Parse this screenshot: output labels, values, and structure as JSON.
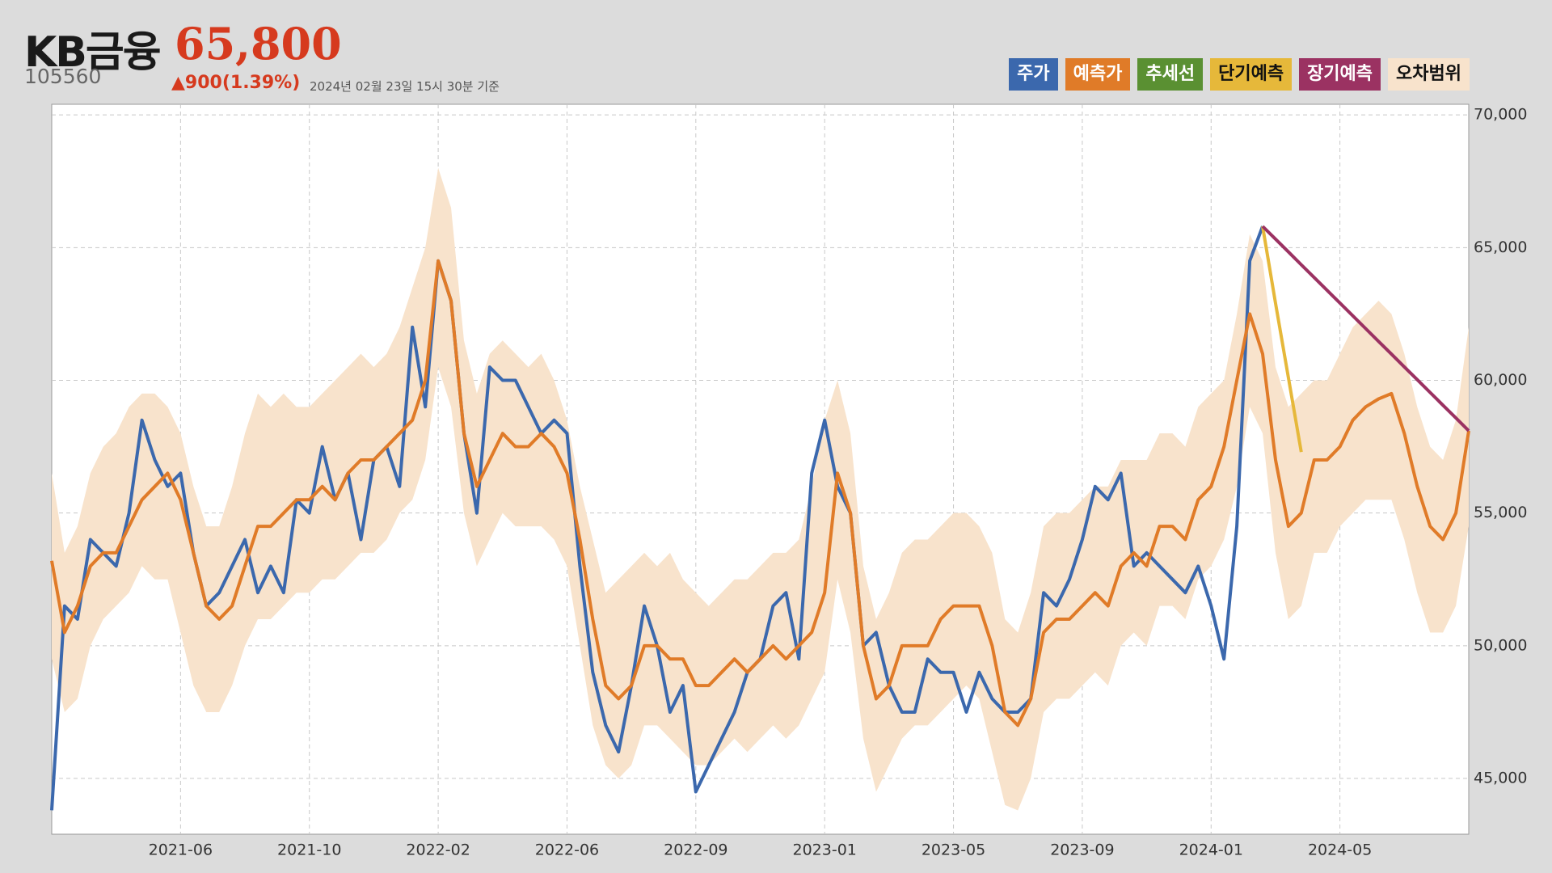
{
  "header": {
    "name": "KB금융",
    "price": "65,800",
    "code": "105560",
    "change": "▲900(1.39%)",
    "timestamp": "2024년 02월 23일 15시 30분 기준"
  },
  "chart_data": {
    "type": "line",
    "categories": [
      null,
      null,
      null,
      null,
      null,
      null,
      null,
      null,
      null,
      null,
      "2021-06",
      null,
      null,
      null,
      null,
      null,
      null,
      null,
      null,
      null,
      "2021-10",
      null,
      null,
      null,
      null,
      null,
      null,
      null,
      null,
      null,
      "2022-02",
      null,
      null,
      null,
      null,
      null,
      null,
      null,
      null,
      null,
      "2022-06",
      null,
      null,
      null,
      null,
      null,
      null,
      null,
      null,
      null,
      "2022-09",
      null,
      null,
      null,
      null,
      null,
      null,
      null,
      null,
      null,
      "2023-01",
      null,
      null,
      null,
      null,
      null,
      null,
      null,
      null,
      null,
      "2023-05",
      null,
      null,
      null,
      null,
      null,
      null,
      null,
      null,
      null,
      "2023-09",
      null,
      null,
      null,
      null,
      null,
      null,
      null,
      null,
      null,
      "2024-01",
      null,
      null,
      null,
      null,
      null,
      null,
      null,
      null,
      null,
      "2024-05",
      null,
      null,
      null,
      null,
      null,
      null,
      null,
      null,
      null,
      null
    ],
    "series": [
      {
        "name": "주가",
        "color": "#3b68ad",
        "values": [
          43800,
          51500,
          51000,
          54000,
          53500,
          53000,
          55000,
          58500,
          57000,
          56000,
          56500,
          53500,
          51500,
          52000,
          53000,
          54000,
          52000,
          53000,
          52000,
          55500,
          55000,
          57500,
          55500,
          56500,
          54000,
          57000,
          57500,
          56000,
          62000,
          59000,
          64500,
          63000,
          58000,
          55000,
          60500,
          60000,
          60000,
          59000,
          58000,
          58500,
          58000,
          53000,
          49000,
          47000,
          46000,
          48500,
          51500,
          50000,
          47500,
          48500,
          44500,
          45500,
          46500,
          47500,
          49000,
          49500,
          51500,
          52000,
          49500,
          56500,
          58500,
          56000,
          55000,
          50000,
          50500,
          48500,
          47500,
          47500,
          49500,
          49000,
          49000,
          47500,
          49000,
          48000,
          47500,
          47500,
          48000,
          52000,
          51500,
          52500,
          54000,
          56000,
          55500,
          56500,
          53000,
          53500,
          53000,
          52500,
          52000,
          53000,
          51500,
          49500,
          54500,
          64500,
          65800,
          null,
          null,
          null,
          null,
          null,
          null,
          null,
          null,
          null,
          null,
          null,
          null,
          null,
          null,
          null,
          null
        ]
      },
      {
        "name": "예측가",
        "color": "#e07b28",
        "values": [
          53200,
          50500,
          51500,
          53000,
          53500,
          53500,
          54500,
          55500,
          56000,
          56500,
          55500,
          53500,
          51500,
          51000,
          51500,
          53000,
          54500,
          54500,
          55000,
          55500,
          55500,
          56000,
          55500,
          56500,
          57000,
          57000,
          57500,
          58000,
          58500,
          60000,
          64500,
          63000,
          58000,
          56000,
          57000,
          58000,
          57500,
          57500,
          58000,
          57500,
          56500,
          54000,
          51000,
          48500,
          48000,
          48500,
          50000,
          50000,
          49500,
          49500,
          48500,
          48500,
          49000,
          49500,
          49000,
          49500,
          50000,
          49500,
          50000,
          50500,
          52000,
          56500,
          55000,
          50000,
          48000,
          48500,
          50000,
          50000,
          50000,
          51000,
          51500,
          51500,
          51500,
          50000,
          47500,
          47000,
          48000,
          50500,
          51000,
          51000,
          51500,
          52000,
          51500,
          53000,
          53500,
          53000,
          54500,
          54500,
          54000,
          55500,
          56000,
          57500,
          60000,
          62500,
          61000,
          57000,
          54500,
          55000,
          57000,
          57000,
          57500,
          58500,
          59000,
          59300,
          59500,
          58000,
          56000,
          54500,
          54000,
          55000,
          58100
        ]
      },
      {
        "name": "추세선",
        "color": "#5a9032"
      },
      {
        "name": "단기예측",
        "color": "#e6b83a",
        "values": [
          null,
          null,
          null,
          null,
          null,
          null,
          null,
          null,
          null,
          null,
          null,
          null,
          null,
          null,
          null,
          null,
          null,
          null,
          null,
          null,
          null,
          null,
          null,
          null,
          null,
          null,
          null,
          null,
          null,
          null,
          null,
          null,
          null,
          null,
          null,
          null,
          null,
          null,
          null,
          null,
          null,
          null,
          null,
          null,
          null,
          null,
          null,
          null,
          null,
          null,
          null,
          null,
          null,
          null,
          null,
          null,
          null,
          null,
          null,
          null,
          null,
          null,
          null,
          null,
          null,
          null,
          null,
          null,
          null,
          null,
          null,
          null,
          null,
          null,
          null,
          null,
          null,
          null,
          null,
          null,
          null,
          null,
          null,
          null,
          null,
          null,
          null,
          null,
          null,
          null,
          null,
          null,
          null,
          null,
          65800,
          62900,
          60100,
          57300,
          null,
          null,
          null,
          null,
          null,
          null,
          null,
          null,
          null,
          null,
          null,
          null,
          null
        ]
      },
      {
        "name": "장기예측",
        "color": "#9b3262",
        "values": [
          null,
          null,
          null,
          null,
          null,
          null,
          null,
          null,
          null,
          null,
          null,
          null,
          null,
          null,
          null,
          null,
          null,
          null,
          null,
          null,
          null,
          null,
          null,
          null,
          null,
          null,
          null,
          null,
          null,
          null,
          null,
          null,
          null,
          null,
          null,
          null,
          null,
          null,
          null,
          null,
          null,
          null,
          null,
          null,
          null,
          null,
          null,
          null,
          null,
          null,
          null,
          null,
          null,
          null,
          null,
          null,
          null,
          null,
          null,
          null,
          null,
          null,
          null,
          null,
          null,
          null,
          null,
          null,
          null,
          null,
          null,
          null,
          null,
          null,
          null,
          null,
          null,
          null,
          null,
          null,
          null,
          null,
          null,
          null,
          null,
          null,
          null,
          null,
          null,
          null,
          null,
          null,
          null,
          null,
          65800,
          65319,
          64838,
          64356,
          63875,
          63394,
          62913,
          62431,
          61950,
          61469,
          60988,
          60506,
          60025,
          59544,
          59063,
          58581,
          58100
        ]
      },
      {
        "name": "오차범위",
        "color": "#f8e3cc",
        "upper": [
          56500,
          53500,
          54500,
          56500,
          57500,
          58000,
          59000,
          59500,
          59500,
          59000,
          58000,
          56000,
          54500,
          54500,
          56000,
          58000,
          59500,
          59000,
          59500,
          59000,
          59000,
          59500,
          60000,
          60500,
          61000,
          60500,
          61000,
          62000,
          63500,
          65000,
          68000,
          66500,
          61500,
          59500,
          61000,
          61500,
          61000,
          60500,
          61000,
          60000,
          58500,
          56000,
          54000,
          52000,
          52500,
          53000,
          53500,
          53000,
          53500,
          52500,
          52000,
          51500,
          52000,
          52500,
          52500,
          53000,
          53500,
          53500,
          54000,
          56000,
          58500,
          60000,
          58000,
          53000,
          51000,
          52000,
          53500,
          54000,
          54000,
          54500,
          55000,
          55000,
          54500,
          53500,
          51000,
          50500,
          52000,
          54500,
          55000,
          55000,
          55500,
          56000,
          56000,
          57000,
          57000,
          57000,
          58000,
          58000,
          57500,
          59000,
          59500,
          60000,
          62500,
          65500,
          64500,
          60500,
          59000,
          59500,
          60000,
          60000,
          61000,
          62000,
          62500,
          63000,
          62500,
          61000,
          59000,
          57500,
          57000,
          58500,
          62000
        ],
        "lower": [
          49500,
          47500,
          48000,
          50000,
          51000,
          51500,
          52000,
          53000,
          52500,
          52500,
          50500,
          48500,
          47500,
          47500,
          48500,
          50000,
          51000,
          51000,
          51500,
          52000,
          52000,
          52500,
          52500,
          53000,
          53500,
          53500,
          54000,
          55000,
          55500,
          57000,
          60500,
          59000,
          55000,
          53000,
          54000,
          55000,
          54500,
          54500,
          54500,
          54000,
          53000,
          50000,
          47000,
          45500,
          45000,
          45500,
          47000,
          47000,
          46500,
          46000,
          45500,
          45500,
          46000,
          46500,
          46000,
          46500,
          47000,
          46500,
          47000,
          48000,
          49000,
          52500,
          50500,
          46500,
          44500,
          45500,
          46500,
          47000,
          47000,
          47500,
          48000,
          48500,
          48000,
          46000,
          44000,
          43800,
          45000,
          47500,
          48000,
          48000,
          48500,
          49000,
          48500,
          50000,
          50500,
          50000,
          51500,
          51500,
          51000,
          52500,
          53000,
          54000,
          56000,
          59000,
          58000,
          53500,
          51000,
          51500,
          53500,
          53500,
          54500,
          55000,
          55500,
          55500,
          55500,
          54000,
          52000,
          50500,
          50500,
          51500,
          54500
        ]
      }
    ],
    "ylim": [
      42900,
      70400
    ],
    "yticks": [
      {
        "value": 45000,
        "label": "45,000"
      },
      {
        "value": 50000,
        "label": "50,000"
      },
      {
        "value": 55000,
        "label": "55,000"
      },
      {
        "value": 60000,
        "label": "60,000"
      },
      {
        "value": 65000,
        "label": "65,000"
      },
      {
        "value": 70000,
        "label": "70,000"
      }
    ],
    "grid": true
  }
}
